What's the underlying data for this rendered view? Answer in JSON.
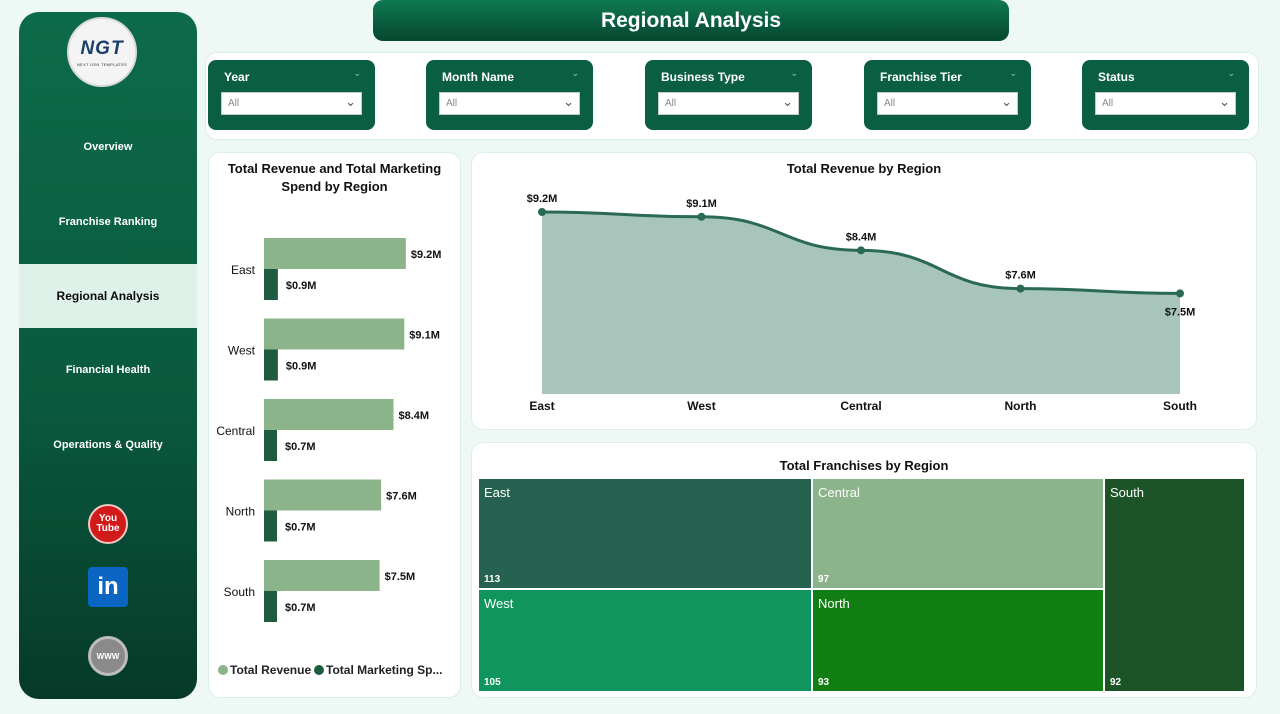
{
  "app": {
    "title": "Regional Analysis",
    "logo": {
      "text": "NGT",
      "subtext": "NEXT GEN TEMPLATES"
    }
  },
  "nav": [
    {
      "label": "Overview"
    },
    {
      "label": "Franchise Ranking"
    },
    {
      "label": "Regional Analysis"
    },
    {
      "label": "Financial Health"
    },
    {
      "label": "Operations & Quality"
    }
  ],
  "social": {
    "youtube_line1": "You",
    "youtube_line2": "Tube",
    "linkedin": "in",
    "web": "WWW"
  },
  "filters": [
    {
      "label": "Year",
      "value": "All"
    },
    {
      "label": "Month Name",
      "value": "All"
    },
    {
      "label": "Business Type",
      "value": "All"
    },
    {
      "label": "Franchise Tier",
      "value": "All"
    },
    {
      "label": "Status",
      "value": "All"
    }
  ],
  "colors": {
    "revenue": "#8cb48a",
    "marketing": "#1f5c3f",
    "area_fill": "#a8c5bb",
    "area_line": "#2a6a55"
  },
  "chart_data": [
    {
      "type": "bar",
      "title": "Total Revenue and Total Marketing Spend by Region",
      "categories": [
        "East",
        "West",
        "Central",
        "North",
        "South"
      ],
      "series": [
        {
          "name": "Total Revenue",
          "values": [
            9.2,
            9.1,
            8.4,
            7.6,
            7.5
          ],
          "labels": [
            "$9.2M",
            "$9.1M",
            "$8.4M",
            "$7.6M",
            "$7.5M"
          ]
        },
        {
          "name": "Total Marketing Sp...",
          "values": [
            0.9,
            0.9,
            0.7,
            0.7,
            0.7
          ],
          "labels": [
            "$0.9M",
            "$0.9M",
            "$0.7M",
            "$0.7M",
            "$0.7M"
          ]
        }
      ],
      "xlim": [
        0,
        12
      ],
      "legend": "bottom"
    },
    {
      "type": "area",
      "title": "Total Revenue by Region",
      "categories": [
        "East",
        "West",
        "Central",
        "North",
        "South"
      ],
      "values": [
        9.2,
        9.1,
        8.4,
        7.6,
        7.5
      ],
      "labels": [
        "$9.2M",
        "$9.1M",
        "$8.4M",
        "$7.6M",
        "$7.5M"
      ]
    },
    {
      "type": "heatmap",
      "title": "Total Franchises by Region",
      "items": [
        {
          "name": "East",
          "value": 113,
          "color": "#256350"
        },
        {
          "name": "Central",
          "value": 97,
          "color": "#8cb48a"
        },
        {
          "name": "South",
          "value": 92,
          "color": "#1c5327"
        },
        {
          "name": "West",
          "value": 105,
          "color": "#11955e"
        },
        {
          "name": "North",
          "value": 93,
          "color": "#117e14"
        }
      ]
    }
  ]
}
